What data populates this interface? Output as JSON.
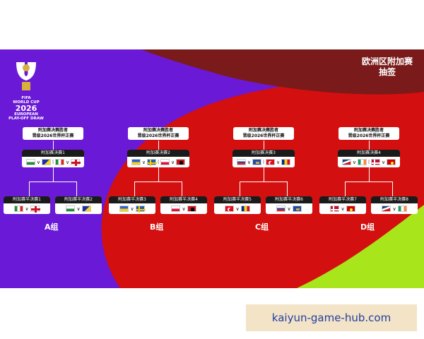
{
  "header": {
    "title_line1": "欧洲区附加赛",
    "title_line2": "抽签"
  },
  "logo": {
    "line1": "FIFA",
    "line2": "WORLD CUP",
    "year": "2026",
    "line3": "EUROPEAN",
    "line4": "PLAY-OFF DRAW"
  },
  "winner_label": {
    "line1": "附加赛决赛胜者",
    "line2": "晋级2026世界杯正赛"
  },
  "groups": [
    {
      "name": "A组",
      "final": "附加赛决赛1",
      "semi_a": "附加赛半决赛1",
      "semi_b": "附加赛半决赛2",
      "final_flags": [
        "wales",
        "bosnia",
        "italy",
        "england"
      ],
      "semi_a_flags": [
        "italy",
        "england"
      ],
      "semi_b_flags": [
        "wales",
        "bosnia"
      ]
    },
    {
      "name": "B组",
      "final": "附加赛决赛2",
      "semi_a": "附加赛半决赛3",
      "semi_b": "附加赛半决赛4",
      "final_flags": [
        "ukraine",
        "sweden",
        "poland",
        "albania"
      ],
      "semi_a_flags": [
        "ukraine",
        "sweden"
      ],
      "semi_b_flags": [
        "poland",
        "albania"
      ]
    },
    {
      "name": "C组",
      "final": "附加赛决赛3",
      "semi_a": "附加赛半决赛5",
      "semi_b": "附加赛半决赛6",
      "final_flags": [
        "slovakia",
        "kosovo",
        "turkey",
        "romania"
      ],
      "semi_a_flags": [
        "turkey",
        "romania"
      ],
      "semi_b_flags": [
        "slovakia",
        "kosovo"
      ]
    },
    {
      "name": "D组",
      "final": "附加赛决赛4",
      "semi_a": "附加赛半决赛7",
      "semi_b": "附加赛半决赛8",
      "final_flags": [
        "czechia",
        "ireland",
        "denmark",
        "north-macedonia"
      ],
      "semi_a_flags": [
        "denmark",
        "north-macedonia"
      ],
      "semi_b_flags": [
        "czechia",
        "ireland"
      ]
    }
  ],
  "watermark": "kaiyun-game-hub.com",
  "colors": {
    "purple": "#6a1ad6",
    "red": "#d30f0f",
    "maroon": "#7a1a1a",
    "lime": "#a8e61b"
  }
}
